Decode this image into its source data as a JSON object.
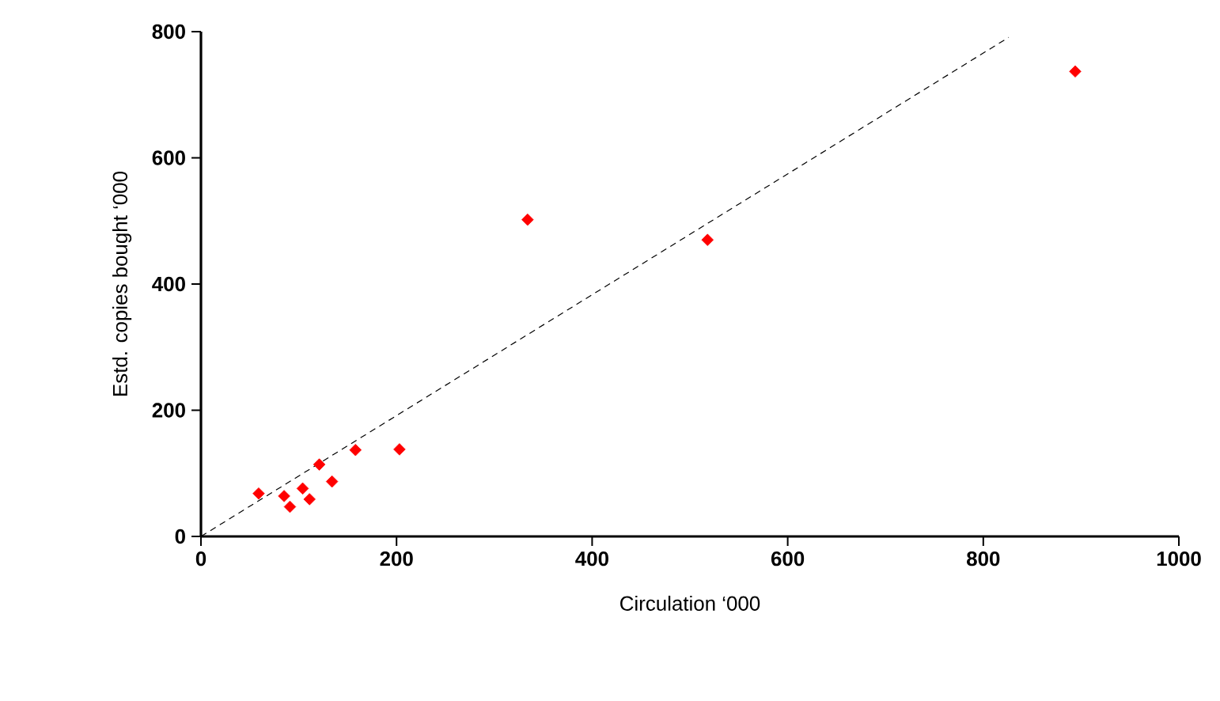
{
  "chart_data": {
    "type": "scatter",
    "xlabel": "Circulation ‘000",
    "ylabel": "Estd. copies bought ‘000",
    "xlim": [
      0,
      1000
    ],
    "ylim": [
      0,
      800
    ],
    "xticks": [
      0,
      200,
      400,
      600,
      800,
      1000
    ],
    "yticks": [
      0,
      200,
      400,
      600,
      800
    ],
    "grid": false,
    "marker": "diamond",
    "series": [
      {
        "color": "#ff0000",
        "x": [
          59,
          85,
          91,
          104,
          111,
          121,
          134,
          158,
          203,
          334,
          518,
          894
        ],
        "values": [
          68,
          64,
          47,
          76,
          59,
          114,
          87,
          137,
          138,
          502,
          470,
          737
        ]
      },
      {
        "type": "line",
        "color": "#000000",
        "line_style": "dashed",
        "marker": "none",
        "x": [
          0,
          826
        ],
        "values": [
          0,
          791
        ]
      }
    ]
  }
}
